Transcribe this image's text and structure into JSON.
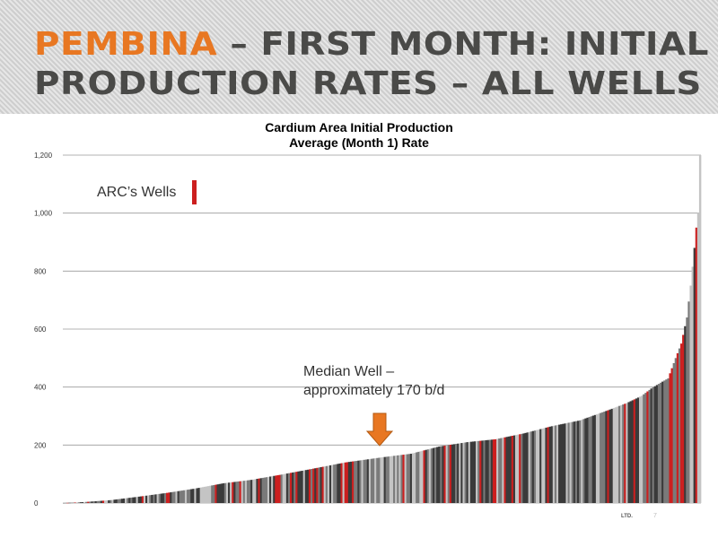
{
  "slide": {
    "title_accent": "PEMBINA",
    "title_rest": " – FIRST MONTH: INITIAL",
    "title_line2": "PRODUCTION RATES – ALL WELLS",
    "footer_left": "LTD.",
    "footer_right": "7"
  },
  "colors": {
    "accent": "#e87722",
    "arc": "#cc1f1f",
    "dark": "#3a3a3a",
    "mid": "#7a7a7a",
    "light": "#c4c4c4",
    "grid": "#9a9a9a"
  },
  "annotations": {
    "legend_label": "ARC’s Wells",
    "median_line1": "Median Well –",
    "median_line2": "approximately 170 b/d"
  },
  "chart_data": {
    "type": "bar",
    "title_line1": "Cardium Area Initial Production",
    "title_line2": "Average (Month 1) Rate",
    "xlabel": "",
    "ylabel": "",
    "ylim": [
      0,
      1200
    ],
    "yticks": [
      0,
      200,
      400,
      600,
      800,
      1000,
      1200
    ],
    "ytick_labels": [
      "0",
      "200",
      "400",
      "600",
      "800",
      "1,000",
      "1,200"
    ],
    "grid": true,
    "legend": "top-left",
    "sorted": "ascending",
    "bar_count": 340,
    "median_value": 170,
    "curve_points": [
      {
        "rank": 0,
        "value": 0
      },
      {
        "rank": 10,
        "value": 3
      },
      {
        "rank": 25,
        "value": 10
      },
      {
        "rank": 40,
        "value": 22
      },
      {
        "rank": 55,
        "value": 35
      },
      {
        "rank": 70,
        "value": 50
      },
      {
        "rank": 85,
        "value": 68
      },
      {
        "rank": 100,
        "value": 80
      },
      {
        "rank": 115,
        "value": 97
      },
      {
        "rank": 130,
        "value": 115
      },
      {
        "rank": 150,
        "value": 140
      },
      {
        "rank": 170,
        "value": 158
      },
      {
        "rank": 185,
        "value": 170
      },
      {
        "rank": 200,
        "value": 195
      },
      {
        "rank": 215,
        "value": 210
      },
      {
        "rank": 230,
        "value": 220
      },
      {
        "rank": 245,
        "value": 240
      },
      {
        "rank": 260,
        "value": 265
      },
      {
        "rank": 275,
        "value": 285
      },
      {
        "rank": 290,
        "value": 320
      },
      {
        "rank": 300,
        "value": 345
      },
      {
        "rank": 308,
        "value": 370
      },
      {
        "rank": 313,
        "value": 395
      },
      {
        "rank": 318,
        "value": 415
      },
      {
        "rank": 322,
        "value": 430
      },
      {
        "rank": 326,
        "value": 500
      },
      {
        "rank": 329,
        "value": 550
      },
      {
        "rank": 332,
        "value": 640
      },
      {
        "rank": 334,
        "value": 750
      },
      {
        "rank": 336,
        "value": 880
      },
      {
        "rank": 337,
        "value": 950
      },
      {
        "rank": 338,
        "value": 1000
      },
      {
        "rank": 339,
        "value": 1200
      }
    ]
  }
}
